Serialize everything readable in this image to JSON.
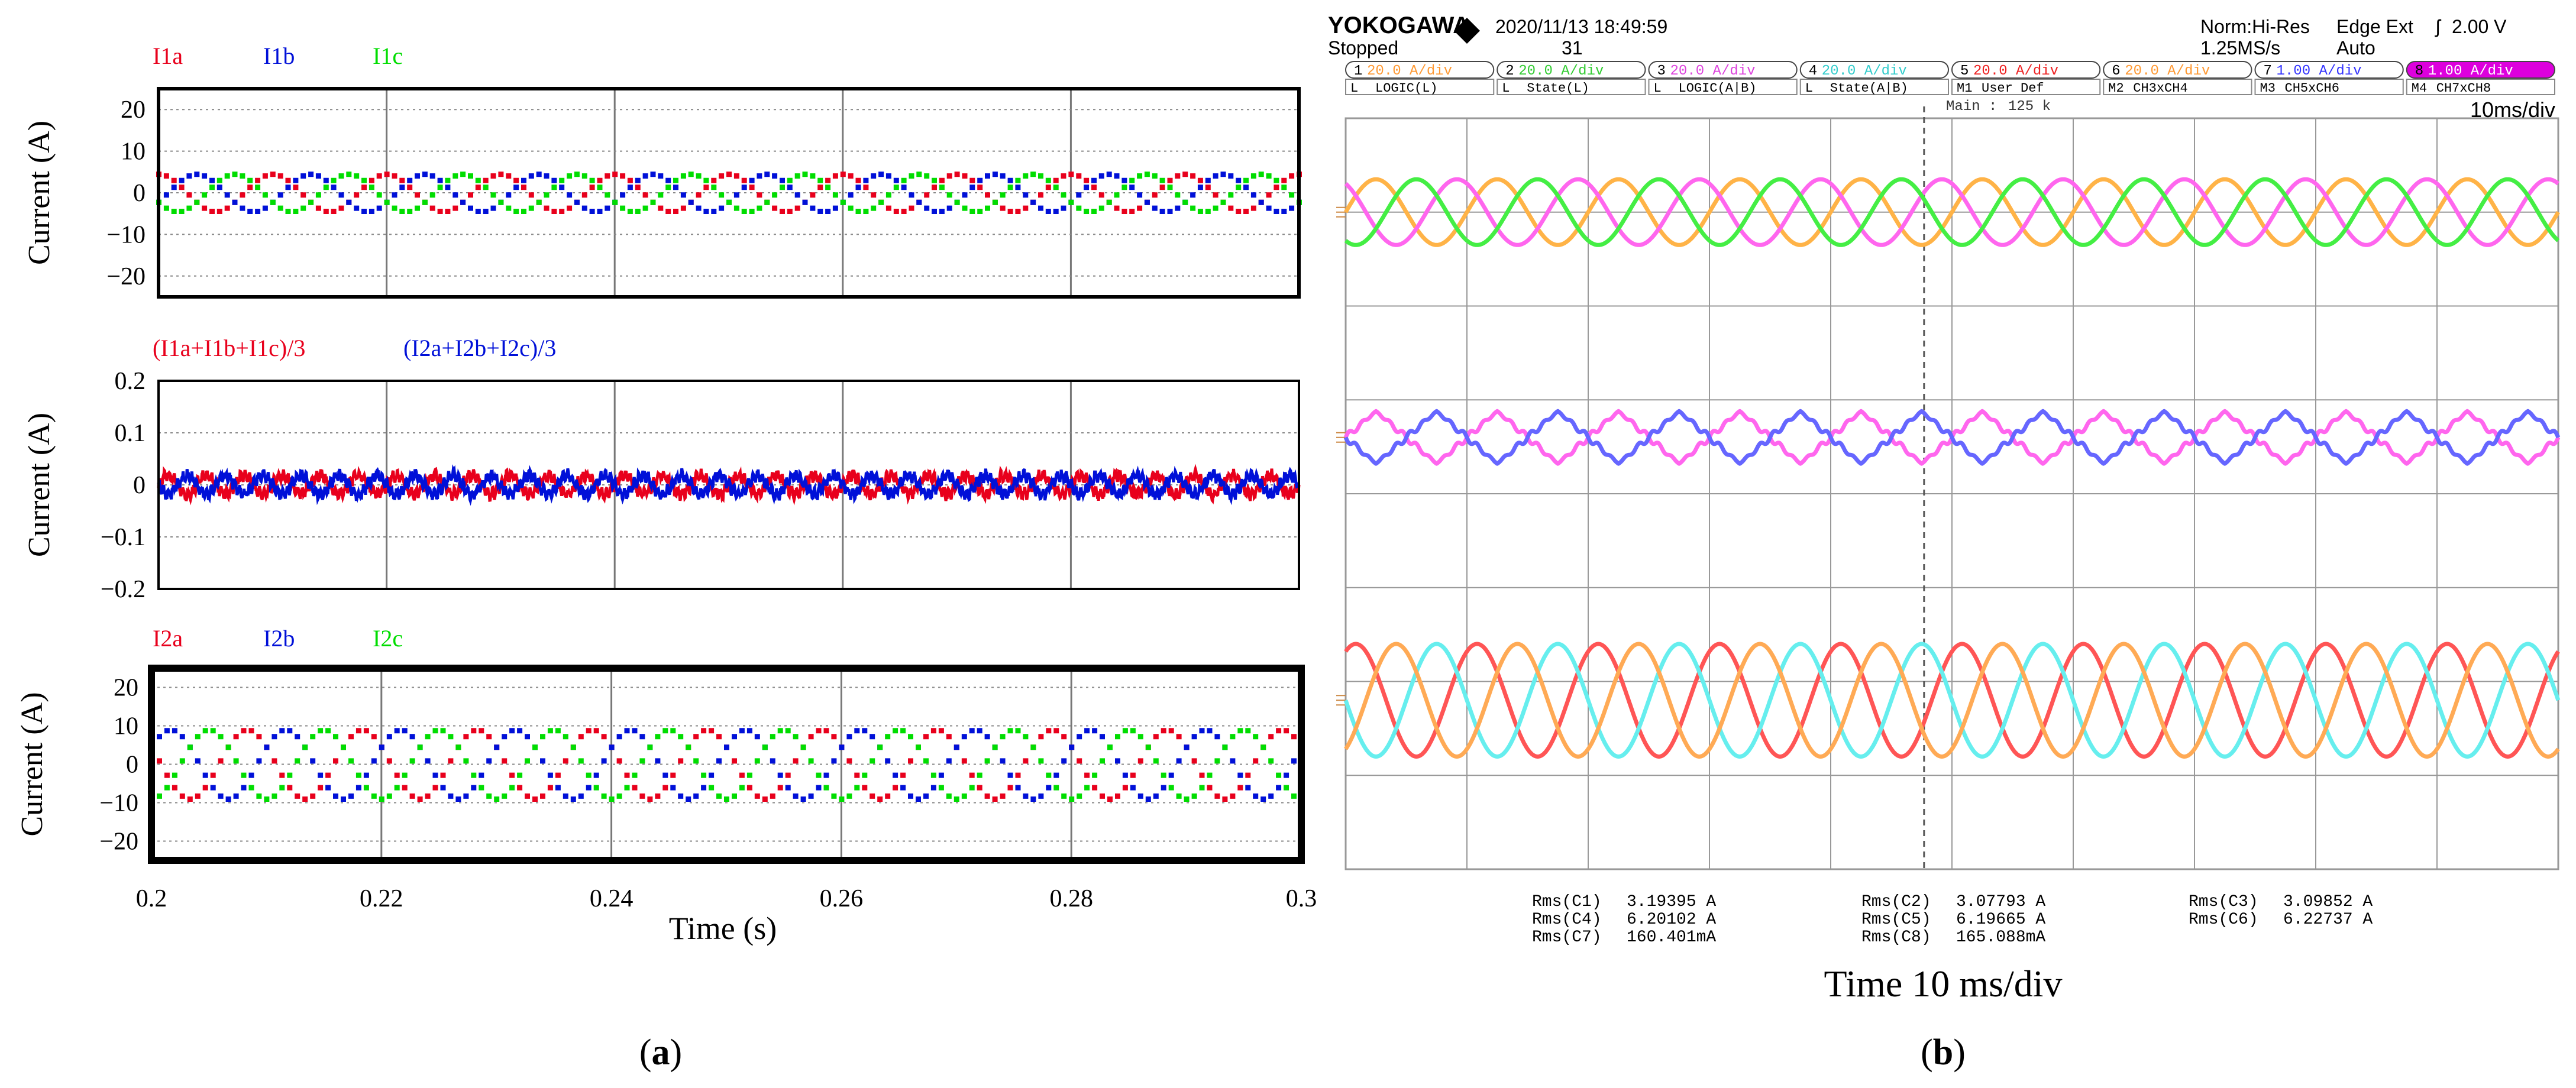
{
  "panel_labels": {
    "a": "(a)",
    "b": "(b)"
  },
  "panel_a_xlabel": "Time (s)",
  "panel_b_xlabel": "Time 10 ms/div",
  "chart_data": [
    {
      "type": "line",
      "title": "",
      "legend": [
        "I1a",
        "I1b",
        "I1c"
      ],
      "legend_colors": [
        "#e8001c",
        "#0010d8",
        "#00dd00"
      ],
      "ylabel": "Current (A)",
      "xlim": [
        0.2,
        0.3
      ],
      "ylim": [
        -25,
        25
      ],
      "yticks": [
        -20,
        -10,
        0,
        10,
        20
      ],
      "ytick_labels": [
        "−20",
        "−10",
        "0",
        "10",
        "20"
      ],
      "grid": true,
      "series": [
        {
          "name": "I1a",
          "color": "#e8001c",
          "amplitude": 4.5,
          "frequency_hz": 100,
          "phase_deg": 90
        },
        {
          "name": "I1b",
          "color": "#0010d8",
          "amplitude": 4.5,
          "frequency_hz": 100,
          "phase_deg": -30
        },
        {
          "name": "I1c",
          "color": "#00dd00",
          "amplitude": 4.5,
          "frequency_hz": 100,
          "phase_deg": 210
        }
      ]
    },
    {
      "type": "line",
      "title": "",
      "legend": [
        "(I1a+I1b+I1c)/3",
        "(I2a+I2b+I2c)/3"
      ],
      "legend_colors": [
        "#e8001c",
        "#0010d8"
      ],
      "ylabel": "Current (A)",
      "xlim": [
        0.2,
        0.3
      ],
      "ylim": [
        -0.2,
        0.2
      ],
      "yticks": [
        -0.2,
        -0.1,
        0,
        0.1,
        0.2
      ],
      "ytick_labels": [
        "−0.2",
        "−0.1",
        "0",
        "0.1",
        "0.2"
      ],
      "grid": true,
      "series": [
        {
          "name": "(I1a+I1b+I1c)/3",
          "color": "#e8001c",
          "amplitude": 0.018,
          "frequency_hz": 300,
          "phase_deg": 0,
          "ripple": 0.008
        },
        {
          "name": "(I2a+I2b+I2c)/3",
          "color": "#0010d8",
          "amplitude": 0.018,
          "frequency_hz": 300,
          "phase_deg": 180,
          "ripple": 0.008
        }
      ]
    },
    {
      "type": "line",
      "title": "",
      "legend": [
        "I2a",
        "I2b",
        "I2c"
      ],
      "legend_colors": [
        "#e8001c",
        "#0010d8",
        "#00dd00"
      ],
      "ylabel": "Current (A)",
      "xlabel": "Time (s)",
      "xlim": [
        0.2,
        0.3
      ],
      "xticks": [
        0.2,
        0.22,
        0.24,
        0.26,
        0.28,
        0.3
      ],
      "ylim": [
        -25,
        25
      ],
      "yticks": [
        -20,
        -10,
        0,
        10,
        20
      ],
      "ytick_labels": [
        "−20",
        "−10",
        "0",
        "10",
        "20"
      ],
      "grid": true,
      "series": [
        {
          "name": "I2a",
          "color": "#e8001c",
          "amplitude": 9,
          "frequency_hz": 100,
          "phase_deg": 150
        },
        {
          "name": "I2b",
          "color": "#0010d8",
          "amplitude": 9,
          "frequency_hz": 100,
          "phase_deg": 30
        },
        {
          "name": "I2c",
          "color": "#00dd00",
          "amplitude": 9,
          "frequency_hz": 100,
          "phase_deg": -90
        }
      ]
    },
    {
      "type": "line",
      "title": "",
      "xlabel": "Time 10 ms/div",
      "time_div": "10ms/div",
      "divisions_x": 10,
      "divisions_y": 8,
      "traces": [
        {
          "group": "top",
          "name": "C6",
          "color": "#ffb347",
          "frequency_hz": 100,
          "phase_deg": 0,
          "amplitude_div": 0.35
        },
        {
          "group": "top",
          "name": "C3",
          "color": "#ff66ee",
          "frequency_hz": 100,
          "phase_deg": 120,
          "amplitude_div": 0.35
        },
        {
          "group": "top",
          "name": "C2",
          "color": "#44ee44",
          "frequency_hz": 100,
          "phase_deg": 240,
          "amplitude_div": 0.35
        },
        {
          "group": "middle",
          "name": "C8",
          "color": "#ff66ee",
          "frequency_hz": 100,
          "phase_deg": 0,
          "amplitude_div": 0.28,
          "shape": "triangle-ripple"
        },
        {
          "group": "middle",
          "name": "C7",
          "color": "#6666ff",
          "frequency_hz": 100,
          "phase_deg": 180,
          "amplitude_div": 0.28,
          "shape": "triangle-ripple"
        },
        {
          "group": "bottom",
          "name": "C1",
          "color": "#ff5555",
          "frequency_hz": 100,
          "phase_deg": 60,
          "amplitude_div": 0.6
        },
        {
          "group": "bottom",
          "name": "C4",
          "color": "#66eeee",
          "frequency_hz": 100,
          "phase_deg": 180,
          "amplitude_div": 0.6
        },
        {
          "group": "bottom",
          "name": "C5",
          "color": "#ffaa55",
          "frequency_hz": 100,
          "phase_deg": 300,
          "amplitude_div": 0.6
        }
      ],
      "rms": [
        {
          "label": "Rms(C1)",
          "value": "3.19395 A"
        },
        {
          "label": "Rms(C4)",
          "value": "6.20102 A"
        },
        {
          "label": "Rms(C7)",
          "value": "160.401mA"
        },
        {
          "label": "Rms(C2)",
          "value": "3.07793 A"
        },
        {
          "label": "Rms(C5)",
          "value": "6.19665 A"
        },
        {
          "label": "Rms(C8)",
          "value": "165.088mA"
        },
        {
          "label": "Rms(C3)",
          "value": "3.09852 A"
        },
        {
          "label": "Rms(C6)",
          "value": "6.22737 A"
        }
      ]
    }
  ],
  "scope_header": {
    "brand": "YOKOGAWA",
    "status": "Stopped",
    "datetime": "2020/11/13  18:49:59",
    "acq_count": "31",
    "mode": "Norm:Hi-Res",
    "sample_rate": "1.25MS/s",
    "trigger": "Edge Ext",
    "trigger_level": "2.00 V",
    "trigger_mode": "Auto",
    "main_label": "Main :",
    "main_value": "125 k",
    "time_div": "10ms/div",
    "channels": [
      {
        "num": "1",
        "text": "20.0  A/div",
        "color": "#ff9933"
      },
      {
        "num": "2",
        "text": "20.0  A/div",
        "color": "#33cc33"
      },
      {
        "num": "3",
        "text": "20.0  A/div",
        "color": "#dd44dd"
      },
      {
        "num": "4",
        "text": "20.0  A/div",
        "color": "#33cccc"
      },
      {
        "num": "5",
        "text": "20.0  A/div",
        "color": "#ee2222"
      },
      {
        "num": "6",
        "text": "20.0  A/div",
        "color": "#ff9933"
      },
      {
        "num": "7",
        "text": "1.00  A/div",
        "color": "#3333ff"
      },
      {
        "num": "8",
        "text": "1.00  A/div",
        "color": "#ffffff"
      }
    ],
    "logic_row": [
      {
        "tag": "L",
        "text": "LOGIC(L)"
      },
      {
        "tag": "L",
        "text": "State(L)"
      },
      {
        "tag": "L",
        "text": "LOGIC(A|B)"
      },
      {
        "tag": "L",
        "text": "State(A|B)"
      },
      {
        "tag": "M1",
        "text": "User Def"
      },
      {
        "tag": "M2",
        "text": "CH3xCH4"
      },
      {
        "tag": "M3",
        "text": "CH5xCH6"
      },
      {
        "tag": "M4",
        "text": "CH7xCH8"
      }
    ]
  }
}
